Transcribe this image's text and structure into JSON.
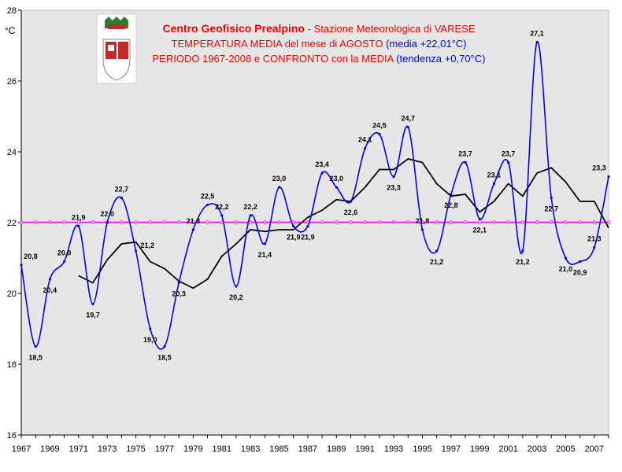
{
  "chart_data": {
    "type": "line",
    "title_lines": [
      [
        {
          "text": "Centro Geofisico Prealpino",
          "color": "#ff0000",
          "bold": true
        },
        {
          "text": " - Stazione Meteorologica di VARESE",
          "color": "#ff0000",
          "bold": false
        }
      ],
      [
        {
          "text": "TEMPERATURA MEDIA del mese di AGOSTO ",
          "color": "#ff0000",
          "bold": false
        },
        {
          "text": "(media +22,01°C)",
          "color": "#0000ff",
          "bold": false
        }
      ],
      [
        {
          "text": "PERIODO 1967-2008 e CONFRONTO con la MEDIA ",
          "color": "#ff0000",
          "bold": false
        },
        {
          "text": "(tendenza +0,70°C)",
          "color": "#0000ff",
          "bold": false
        }
      ]
    ],
    "ylabel": "°C",
    "ylim": [
      16,
      28
    ],
    "yticks": [
      16,
      18,
      20,
      22,
      24,
      26,
      28
    ],
    "xlim": [
      1967,
      2008
    ],
    "xticks": [
      1967,
      1969,
      1971,
      1973,
      1975,
      1977,
      1979,
      1981,
      1983,
      1985,
      1987,
      1989,
      1991,
      1993,
      1995,
      1997,
      1999,
      2001,
      2003,
      2005,
      2007
    ],
    "grid": false,
    "series": [
      {
        "kind": "observed",
        "color": "#0000ff",
        "x": [
          1967,
          1968,
          1969,
          1970,
          1971,
          1972,
          1973,
          1974,
          1975,
          1976,
          1977,
          1978,
          1979,
          1980,
          1981,
          1982,
          1983,
          1984,
          1985,
          1986,
          1987,
          1988,
          1989,
          1990,
          1991,
          1992,
          1993,
          1994,
          1995,
          1996,
          1997,
          1998,
          1999,
          2000,
          2001,
          2002,
          2003,
          2004,
          2005,
          2006,
          2007,
          2008
        ],
        "values": [
          20.8,
          18.5,
          20.4,
          20.9,
          21.9,
          19.7,
          22.0,
          22.7,
          21.2,
          19.0,
          18.5,
          20.3,
          21.8,
          22.5,
          22.2,
          20.2,
          22.2,
          21.4,
          23.0,
          21.9,
          21.9,
          23.4,
          23.0,
          22.6,
          24.1,
          24.5,
          23.3,
          24.7,
          21.8,
          21.2,
          22.8,
          23.7,
          22.1,
          23.1,
          23.7,
          21.2,
          27.1,
          22.7,
          21.0,
          20.9,
          21.3,
          23.3
        ],
        "labels": [
          "20,8",
          "18,5",
          "20,4",
          "20,9",
          "21,9",
          "19,7",
          "22,0",
          "22,7",
          "21,2",
          "19,0",
          "18,5",
          "20,3",
          "21,8",
          "22,5",
          "22,2",
          "20,2",
          "22,2",
          "21,4",
          "23,0",
          "21,9",
          "21,9",
          "23,4",
          "23,0",
          "22,6",
          "24,1",
          "24,5",
          "23,3",
          "24,7",
          "21,8",
          "21,2",
          "22,8",
          "23,7",
          "22,1",
          "23,1",
          "23,7",
          "21,2",
          "27,1",
          "22,7",
          "21,0",
          "20,9",
          "21,3",
          "23,3"
        ],
        "label_pos": [
          "above",
          "below",
          "below",
          "above",
          "above",
          "below",
          "above",
          "above",
          "right",
          "below",
          "below",
          "below",
          "above",
          "above",
          "above",
          "below",
          "above",
          "below",
          "above",
          "below",
          "below",
          "above",
          "above",
          "below",
          "above",
          "above",
          "below",
          "above",
          "above",
          "below",
          "below",
          "above",
          "below",
          "above",
          "above",
          "below",
          "above",
          "below",
          "below",
          "below",
          "above",
          "above"
        ]
      },
      {
        "kind": "moving-average",
        "color": "#000000",
        "x": [
          1971,
          1972,
          1973,
          1974,
          1975,
          1976,
          1977,
          1978,
          1979,
          1980,
          1981,
          1982,
          1983,
          1984,
          1985,
          1986,
          1987,
          1988,
          1989,
          1990,
          1991,
          1992,
          1993,
          1994,
          1995,
          1996,
          1997,
          1998,
          1999,
          2000,
          2001,
          2002,
          2003,
          2004,
          2005,
          2006,
          2007,
          2008
        ],
        "values": [
          20.5,
          20.3,
          20.95,
          21.4,
          21.45,
          20.9,
          20.7,
          20.35,
          20.15,
          20.4,
          21.05,
          21.4,
          21.8,
          21.75,
          21.8,
          21.8,
          22.15,
          22.35,
          22.65,
          22.6,
          23.0,
          23.5,
          23.5,
          23.8,
          23.7,
          23.1,
          22.75,
          22.8,
          22.3,
          22.6,
          23.1,
          22.75,
          23.4,
          23.55,
          23.15,
          22.6,
          22.6,
          21.85
        ]
      },
      {
        "kind": "mean-line",
        "color": "#ff00ff",
        "value": 22.01
      }
    ]
  }
}
